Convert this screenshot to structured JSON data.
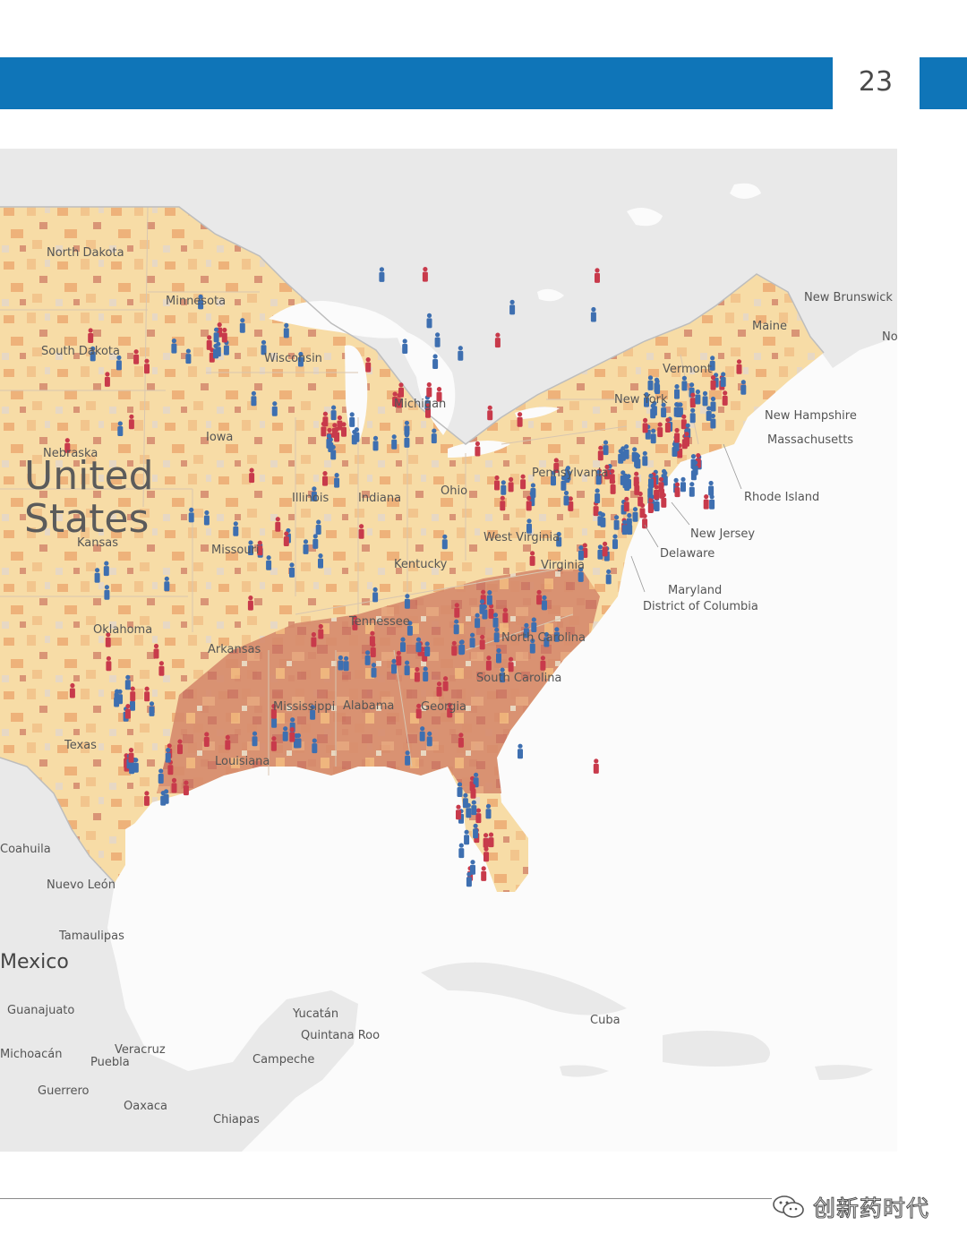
{
  "header": {
    "page_number": "23",
    "band_color": "#0f75b8"
  },
  "map": {
    "colors": {
      "land_light": "#f7dca6",
      "land_mid": "#eeb27a",
      "land_dark": "#cf7a63",
      "foreign": "#e9e9e9",
      "water": "#fbfbfb",
      "marker_blue": "#3e6fb0",
      "marker_red": "#c83a4b"
    },
    "country_labels": {
      "us_line1": "United",
      "us_line2": "States",
      "mexico": "Mexico"
    },
    "state_labels": [
      {
        "key": "nd",
        "text": "North Dakota"
      },
      {
        "key": "sd",
        "text": "South Dakota"
      },
      {
        "key": "mn",
        "text": "Minnesota"
      },
      {
        "key": "wi",
        "text": "Wisconsin"
      },
      {
        "key": "ia",
        "text": "Iowa"
      },
      {
        "key": "ne",
        "text": "Nebraska"
      },
      {
        "key": "ks",
        "text": "Kansas"
      },
      {
        "key": "mo",
        "text": "Missouri"
      },
      {
        "key": "il",
        "text": "Illinois"
      },
      {
        "key": "in",
        "text": "Indiana"
      },
      {
        "key": "mi",
        "text": "Michigan"
      },
      {
        "key": "oh",
        "text": "Ohio"
      },
      {
        "key": "pa",
        "text": "Pennsylvania"
      },
      {
        "key": "ny",
        "text": "New York"
      },
      {
        "key": "vt",
        "text": "Vermont"
      },
      {
        "key": "me",
        "text": "Maine"
      },
      {
        "key": "nh",
        "text": "New Hampshire"
      },
      {
        "key": "ma",
        "text": "Massachusetts"
      },
      {
        "key": "ri",
        "text": "Rhode Island"
      },
      {
        "key": "nj",
        "text": "New Jersey"
      },
      {
        "key": "de",
        "text": "Delaware"
      },
      {
        "key": "md",
        "text": "Maryland"
      },
      {
        "key": "dc",
        "text": "District of Columbia"
      },
      {
        "key": "wv",
        "text": "West Virginia"
      },
      {
        "key": "va",
        "text": "Virginia"
      },
      {
        "key": "ky",
        "text": "Kentucky"
      },
      {
        "key": "tn",
        "text": "Tennessee"
      },
      {
        "key": "nc",
        "text": "North Carolina"
      },
      {
        "key": "sc",
        "text": "South Carolina"
      },
      {
        "key": "ga",
        "text": "Georgia"
      },
      {
        "key": "al",
        "text": "Alabama"
      },
      {
        "key": "ms",
        "text": "Mississippi"
      },
      {
        "key": "la",
        "text": "Louisiana"
      },
      {
        "key": "ar",
        "text": "Arkansas"
      },
      {
        "key": "ok",
        "text": "Oklahoma"
      },
      {
        "key": "tx",
        "text": "Texas"
      }
    ],
    "region_labels": [
      {
        "key": "nb",
        "text": "New Brunswick"
      },
      {
        "key": "ns",
        "text": "Nova Scotia"
      },
      {
        "key": "coah",
        "text": "Coahuila"
      },
      {
        "key": "nl",
        "text": "Nuevo León"
      },
      {
        "key": "tam",
        "text": "Tamaulipas"
      },
      {
        "key": "gto",
        "text": "Guanajuato"
      },
      {
        "key": "mich",
        "text": "Michoacán"
      },
      {
        "key": "ver",
        "text": "Veracruz"
      },
      {
        "key": "pue",
        "text": "Puebla"
      },
      {
        "key": "gro",
        "text": "Guerrero"
      },
      {
        "key": "oax",
        "text": "Oaxaca"
      },
      {
        "key": "chis",
        "text": "Chiapas"
      },
      {
        "key": "yuc",
        "text": "Yucatán"
      },
      {
        "key": "qroo",
        "text": "Quintana Roo"
      },
      {
        "key": "camp",
        "text": "Campeche"
      },
      {
        "key": "cuba",
        "text": "Cuba"
      }
    ]
  },
  "footer": {
    "watermark": "创新药时代"
  }
}
